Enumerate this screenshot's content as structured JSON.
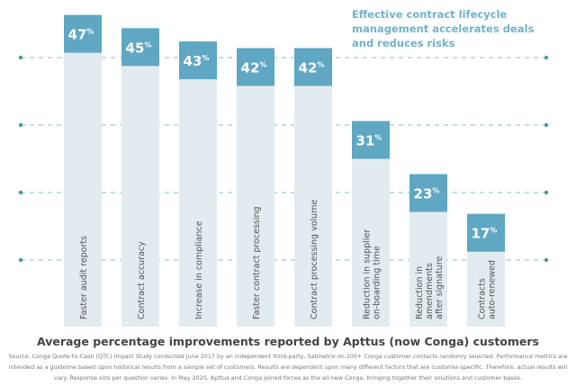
{
  "chart_data": {
    "type": "bar",
    "categories": [
      [
        "Faster audit reports"
      ],
      [
        "Contract accuracy"
      ],
      [
        "Increase in compliance"
      ],
      [
        "Faster contract processing"
      ],
      [
        "Contract processing volume"
      ],
      [
        "Reduction in supplier",
        "on-boarding time"
      ],
      [
        "Reduction in",
        "amendments",
        "after signature"
      ],
      [
        "Contracts",
        "auto-renewed"
      ]
    ],
    "values": [
      47,
      45,
      43,
      42,
      42,
      31,
      23,
      17
    ],
    "unit": "%",
    "title": "Average percentage improvements reported by Apttus (now Conga) customers",
    "ylim": [
      0,
      50
    ],
    "grid": "dashed horizontal",
    "colors": {
      "value_block": "#5fa7c3",
      "bar": "#e2ecf0",
      "grid": "#8bbfc0",
      "grid_dot": "#4a9a96"
    }
  },
  "headline": "Effective contract lifecycle management accelerates deals and reduces risks",
  "source": "Source: Conga Quote-to-Cash (QTC) Impact Study conducted June 2017 by an independent third-party, Satmetrix on 200+ Conga customer contacts randomly selected. Performance metrics are intended as a guideline based upon historical results from a sample set of customers. Results are dependent upon many different factors that are customer-specific. Therefore, actual results will vary. Response size per question varies. In May 2020, Apttus and Conga joined forces as the all-new Conga, bringing together their solutions and customer bases."
}
